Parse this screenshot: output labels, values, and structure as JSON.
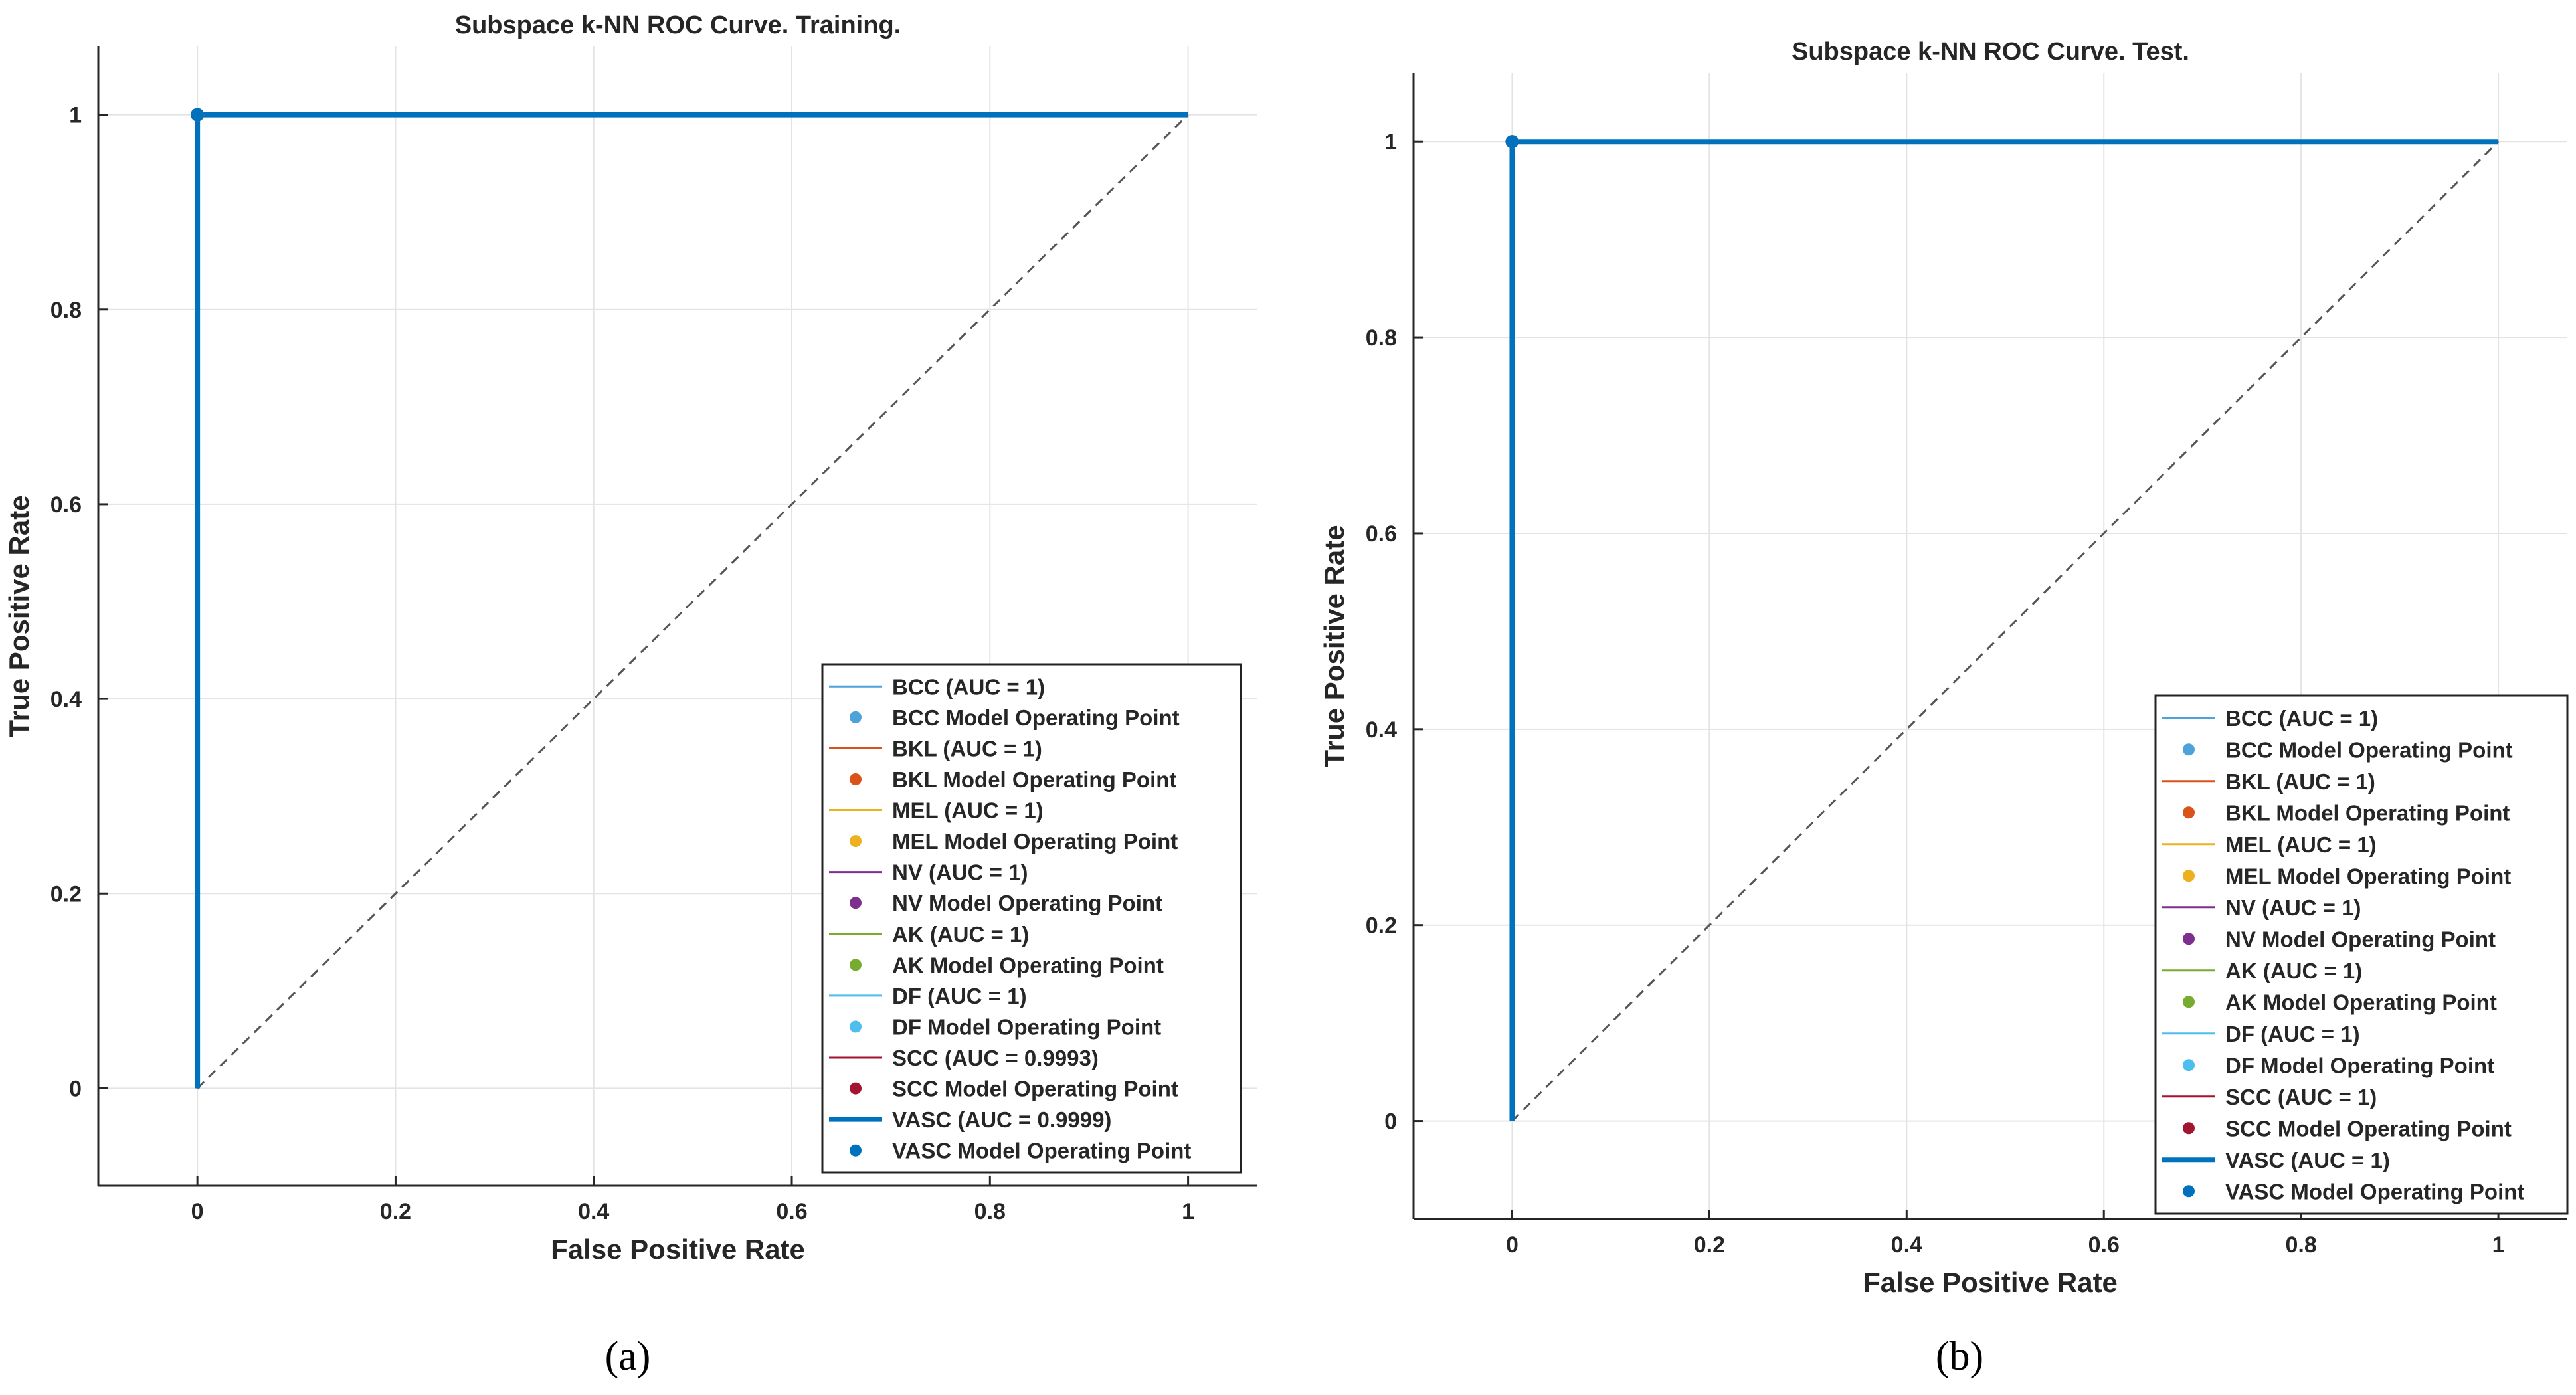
{
  "colors": {
    "roc_line": "#0072BD",
    "diagonal": "#555555",
    "grid": "#e3e3e3",
    "axis": "#262626"
  },
  "chart_data": [
    {
      "type": "line",
      "title": "Subspace k-NN ROC Curve. Training.",
      "xlabel": "False Positive Rate",
      "ylabel": "True Positive Rate",
      "caption": "(a)",
      "xlim": [
        -0.1,
        1.07
      ],
      "ylim": [
        -0.1,
        1.07
      ],
      "xticks": [
        0,
        0.2,
        0.4,
        0.6,
        0.8,
        1
      ],
      "xtick_labels": [
        "0",
        "0.2",
        "0.4",
        "0.6",
        "0.8",
        "1"
      ],
      "yticks": [
        0,
        0.2,
        0.4,
        0.6,
        0.8,
        1
      ],
      "ytick_labels": [
        "0",
        "0.2",
        "0.4",
        "0.6",
        "0.8",
        "1"
      ],
      "grid": true,
      "legend_position": "bottom-right",
      "series": [
        {
          "name": "BCC",
          "label": "BCC (AUC = 1)",
          "point_label": "BCC Model Operating Point",
          "color": "#4DA3D9",
          "x": [
            0,
            0,
            1
          ],
          "y": [
            0,
            1,
            1
          ],
          "operating_point": [
            0,
            1
          ]
        },
        {
          "name": "BKL",
          "label": "BKL (AUC = 1)",
          "point_label": "BKL Model Operating Point",
          "color": "#D95319",
          "x": [
            0,
            0,
            1
          ],
          "y": [
            0,
            1,
            1
          ],
          "operating_point": [
            0,
            1
          ]
        },
        {
          "name": "MEL",
          "label": "MEL (AUC = 1)",
          "point_label": "MEL Model Operating Point",
          "color": "#EDB120",
          "x": [
            0,
            0,
            1
          ],
          "y": [
            0,
            1,
            1
          ],
          "operating_point": [
            0,
            1
          ]
        },
        {
          "name": "NV",
          "label": "NV (AUC = 1)",
          "point_label": "NV Model Operating Point",
          "color": "#7E2F8E",
          "x": [
            0,
            0,
            1
          ],
          "y": [
            0,
            1,
            1
          ],
          "operating_point": [
            0,
            1
          ]
        },
        {
          "name": "AK",
          "label": "AK (AUC = 1)",
          "point_label": "AK Model Operating Point",
          "color": "#77AC30",
          "x": [
            0,
            0,
            1
          ],
          "y": [
            0,
            1,
            1
          ],
          "operating_point": [
            0,
            1
          ]
        },
        {
          "name": "DF",
          "label": "DF (AUC = 1)",
          "point_label": "DF Model Operating Point",
          "color": "#4DBEEE",
          "x": [
            0,
            0,
            1
          ],
          "y": [
            0,
            1,
            1
          ],
          "operating_point": [
            0,
            1
          ]
        },
        {
          "name": "SCC",
          "label": "SCC (AUC = 0.9993)",
          "point_label": "SCC Model Operating Point",
          "color": "#A2142F",
          "x": [
            0,
            0,
            1
          ],
          "y": [
            0,
            1,
            1
          ],
          "operating_point": [
            0,
            1
          ]
        },
        {
          "name": "VASC",
          "label": "VASC (AUC = 0.9999)",
          "point_label": "VASC Model Operating Point",
          "color": "#0072BD",
          "x": [
            0,
            0,
            1
          ],
          "y": [
            0,
            1,
            1
          ],
          "operating_point": [
            0,
            1
          ],
          "thick": true
        }
      ],
      "reference_line": {
        "x": [
          0,
          1
        ],
        "y": [
          0,
          1
        ]
      }
    },
    {
      "type": "line",
      "title": "Subspace k-NN ROC Curve. Test.",
      "xlabel": "False Positive Rate",
      "ylabel": "True Positive Rate",
      "caption": "(b)",
      "xlim": [
        -0.1,
        1.07
      ],
      "ylim": [
        -0.1,
        1.07
      ],
      "xticks": [
        0,
        0.2,
        0.4,
        0.6,
        0.8,
        1
      ],
      "xtick_labels": [
        "0",
        "0.2",
        "0.4",
        "0.6",
        "0.8",
        "1"
      ],
      "yticks": [
        0,
        0.2,
        0.4,
        0.6,
        0.8,
        1
      ],
      "ytick_labels": [
        "0",
        "0.2",
        "0.4",
        "0.6",
        "0.8",
        "1"
      ],
      "grid": true,
      "legend_position": "bottom-right",
      "series": [
        {
          "name": "BCC",
          "label": "BCC (AUC = 1)",
          "point_label": "BCC Model Operating Point",
          "color": "#4DA3D9",
          "x": [
            0,
            0,
            1
          ],
          "y": [
            0,
            1,
            1
          ],
          "operating_point": [
            0,
            1
          ]
        },
        {
          "name": "BKL",
          "label": "BKL (AUC = 1)",
          "point_label": "BKL Model Operating Point",
          "color": "#D95319",
          "x": [
            0,
            0,
            1
          ],
          "y": [
            0,
            1,
            1
          ],
          "operating_point": [
            0,
            1
          ]
        },
        {
          "name": "MEL",
          "label": "MEL (AUC = 1)",
          "point_label": "MEL Model Operating Point",
          "color": "#EDB120",
          "x": [
            0,
            0,
            1
          ],
          "y": [
            0,
            1,
            1
          ],
          "operating_point": [
            0,
            1
          ]
        },
        {
          "name": "NV",
          "label": "NV (AUC = 1)",
          "point_label": "NV Model Operating Point",
          "color": "#7E2F8E",
          "x": [
            0,
            0,
            1
          ],
          "y": [
            0,
            1,
            1
          ],
          "operating_point": [
            0,
            1
          ]
        },
        {
          "name": "AK",
          "label": "AK (AUC = 1)",
          "point_label": "AK Model Operating Point",
          "color": "#77AC30",
          "x": [
            0,
            0,
            1
          ],
          "y": [
            0,
            1,
            1
          ],
          "operating_point": [
            0,
            1
          ]
        },
        {
          "name": "DF",
          "label": "DF (AUC = 1)",
          "point_label": "DF Model Operating Point",
          "color": "#4DBEEE",
          "x": [
            0,
            0,
            1
          ],
          "y": [
            0,
            1,
            1
          ],
          "operating_point": [
            0,
            1
          ]
        },
        {
          "name": "SCC",
          "label": "SCC (AUC = 1)",
          "point_label": "SCC Model Operating Point",
          "color": "#A2142F",
          "x": [
            0,
            0,
            1
          ],
          "y": [
            0,
            1,
            1
          ],
          "operating_point": [
            0,
            1
          ]
        },
        {
          "name": "VASC",
          "label": "VASC (AUC = 1)",
          "point_label": "VASC Model Operating Point",
          "color": "#0072BD",
          "x": [
            0,
            0,
            1
          ],
          "y": [
            0,
            1,
            1
          ],
          "operating_point": [
            0,
            1
          ],
          "thick": true
        }
      ],
      "reference_line": {
        "x": [
          0,
          1
        ],
        "y": [
          0,
          1
        ]
      }
    }
  ]
}
